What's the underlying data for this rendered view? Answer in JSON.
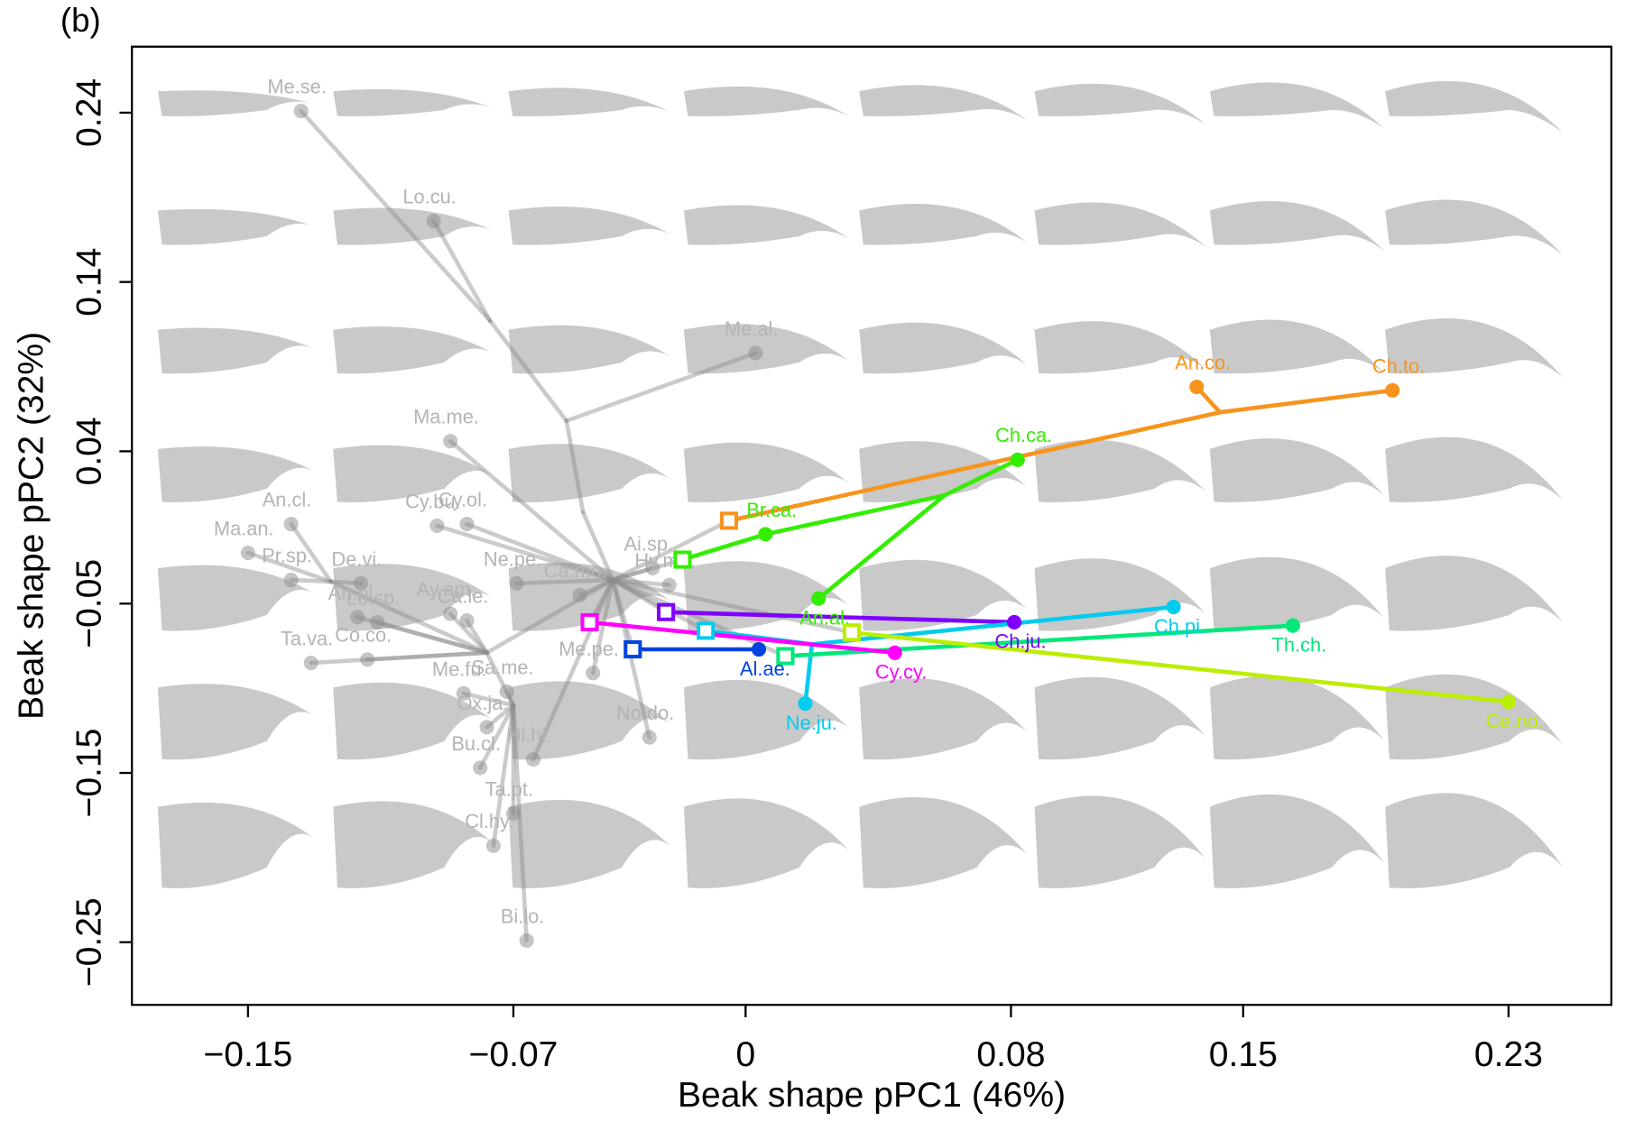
{
  "chart_data": {
    "type": "phylomorphospace",
    "title": "(b)",
    "x_label": "Beak shape pPC1 (46%)",
    "y_label": "Beak shape pPC2 (32%)",
    "xlim": [
      -0.185,
      0.261
    ],
    "ylim": [
      -0.287,
      0.279
    ],
    "xticks": [
      {
        "value": -0.15,
        "label": "−0.15"
      },
      {
        "value": -0.07,
        "label": "−0.07"
      },
      {
        "value": 0,
        "label": "0"
      },
      {
        "value": 0.08,
        "label": "0.08"
      },
      {
        "value": 0.15,
        "label": "0.15"
      },
      {
        "value": 0.23,
        "label": "0.23"
      }
    ],
    "yticks": [
      {
        "value": 0.24,
        "label": "0.24"
      },
      {
        "value": 0.14,
        "label": "0.14"
      },
      {
        "value": 0.04,
        "label": "0.04"
      },
      {
        "value": -0.05,
        "label": "−0.05"
      },
      {
        "value": -0.15,
        "label": "−0.15"
      },
      {
        "value": -0.25,
        "label": "−0.25"
      }
    ],
    "groups": [
      {
        "color": "#8c8c8c",
        "branches": [
          {
            "x": [
              -0.134,
              -0.077
            ],
            "y": [
              0.241,
              0.117
            ]
          },
          {
            "x": [
              -0.094,
              -0.077
            ],
            "y": [
              0.176,
              0.117
            ]
          },
          {
            "x": [
              -0.077,
              -0.054
            ],
            "y": [
              0.117,
              0.058
            ]
          },
          {
            "x": [
              0.003,
              -0.054
            ],
            "y": [
              0.098,
              0.058
            ]
          },
          {
            "x": [
              -0.054,
              -0.049
            ],
            "y": [
              0.058,
              0.004
            ]
          },
          {
            "x": [
              -0.049,
              -0.04
            ],
            "y": [
              0.004,
              -0.036
            ]
          },
          {
            "x": [
              -0.089,
              -0.04
            ],
            "y": [
              0.046,
              -0.036
            ]
          },
          {
            "x": [
              -0.04,
              -0.078
            ],
            "y": [
              -0.036,
              -0.079
            ]
          },
          {
            "x": [
              -0.15,
              -0.125
            ],
            "y": [
              -0.02,
              -0.037
            ]
          },
          {
            "x": [
              -0.137,
              -0.125
            ],
            "y": [
              -0.036,
              -0.037
            ]
          },
          {
            "x": [
              -0.137,
              -0.125
            ],
            "y": [
              -0.003,
              -0.037
            ]
          },
          {
            "x": [
              -0.116,
              -0.125
            ],
            "y": [
              -0.038,
              -0.037
            ]
          },
          {
            "x": [
              -0.125,
              -0.078
            ],
            "y": [
              -0.037,
              -0.079
            ]
          },
          {
            "x": [
              -0.117,
              -0.078
            ],
            "y": [
              -0.058,
              -0.079
            ]
          },
          {
            "x": [
              -0.089,
              -0.078
            ],
            "y": [
              -0.056,
              -0.079
            ]
          },
          {
            "x": [
              -0.084,
              -0.078
            ],
            "y": [
              -0.06,
              -0.079
            ]
          },
          {
            "x": [
              -0.111,
              -0.078
            ],
            "y": [
              -0.061,
              -0.079
            ]
          },
          {
            "x": [
              -0.093,
              -0.04
            ],
            "y": [
              -0.004,
              -0.036
            ]
          },
          {
            "x": [
              -0.084,
              -0.04
            ],
            "y": [
              -0.003,
              -0.036
            ]
          },
          {
            "x": [
              -0.069,
              -0.04
            ],
            "y": [
              -0.038,
              -0.036
            ]
          },
          {
            "x": [
              -0.05,
              -0.04
            ],
            "y": [
              -0.045,
              -0.036
            ]
          },
          {
            "x": [
              -0.028,
              -0.04
            ],
            "y": [
              -0.029,
              -0.036
            ]
          },
          {
            "x": [
              -0.023,
              -0.04
            ],
            "y": [
              -0.039,
              -0.036
            ]
          },
          {
            "x": [
              -0.131,
              -0.078
            ],
            "y": [
              -0.085,
              -0.079
            ]
          },
          {
            "x": [
              -0.114,
              -0.078
            ],
            "y": [
              -0.083,
              -0.079
            ]
          },
          {
            "x": [
              -0.078,
              -0.07
            ],
            "y": [
              -0.079,
              -0.11
            ]
          },
          {
            "x": [
              -0.085,
              -0.07
            ],
            "y": [
              -0.103,
              -0.11
            ]
          },
          {
            "x": [
              -0.072,
              -0.07
            ],
            "y": [
              -0.102,
              -0.11
            ]
          },
          {
            "x": [
              -0.046,
              -0.04
            ],
            "y": [
              -0.091,
              -0.036
            ]
          },
          {
            "x": [
              -0.078,
              -0.07
            ],
            "y": [
              -0.123,
              -0.11
            ]
          },
          {
            "x": [
              -0.029,
              -0.04
            ],
            "y": [
              -0.129,
              -0.036
            ]
          },
          {
            "x": [
              -0.08,
              -0.07
            ],
            "y": [
              -0.147,
              -0.11
            ]
          },
          {
            "x": [
              -0.064,
              -0.04
            ],
            "y": [
              -0.142,
              -0.036
            ]
          },
          {
            "x": [
              -0.07,
              -0.07
            ],
            "y": [
              -0.174,
              -0.11
            ]
          },
          {
            "x": [
              -0.076,
              -0.07
            ],
            "y": [
              -0.193,
              -0.11
            ]
          },
          {
            "x": [
              -0.066,
              -0.07
            ],
            "y": [
              -0.249,
              -0.11
            ]
          },
          {
            "x": [
              -0.04,
              -0.005
            ],
            "y": [
              -0.036,
              -0.001
            ]
          },
          {
            "x": [
              -0.04,
              -0.019
            ],
            "y": [
              -0.036,
              -0.024
            ]
          },
          {
            "x": [
              -0.04,
              -0.024
            ],
            "y": [
              -0.036,
              -0.055
            ]
          },
          {
            "x": [
              -0.04,
              -0.012
            ],
            "y": [
              -0.036,
              -0.066
            ]
          },
          {
            "x": [
              -0.04,
              0.012
            ],
            "y": [
              -0.036,
              -0.081
            ]
          },
          {
            "x": [
              -0.04,
              0.032
            ],
            "y": [
              -0.036,
              -0.067
            ]
          },
          {
            "x": [
              -0.04,
              -0.047
            ],
            "y": [
              -0.036,
              -0.061
            ]
          },
          {
            "x": [
              -0.04,
              -0.034
            ],
            "y": [
              -0.036,
              -0.077
            ]
          }
        ],
        "tips": {
          "labels": [
            "Me.se.",
            "Lo.cu.",
            "Me.al.",
            "Ma.me.",
            "An.cl.",
            "Ma.an.",
            "Cy.bu.",
            "Cy.ol.",
            "Pr.sp.",
            "De.vi.",
            "An.pl.",
            "Ay.am.",
            "Lo.sp.",
            "Ca.le.",
            "Ne.pe.",
            "Ca.mo.",
            "Ai.sp.",
            "Hy.ma.",
            "Ta.va.",
            "Co.co.",
            "Me.fu.",
            "Sa.me.",
            "Me.pe.",
            "Ox.ja.",
            "No.do.",
            "Bu.cl.",
            "Hi.hi.",
            "Ta.pt.",
            "Cl.hy.",
            "Bi.lo."
          ],
          "x": [
            -0.134,
            -0.094,
            0.003,
            -0.089,
            -0.137,
            -0.15,
            -0.093,
            -0.084,
            -0.137,
            -0.116,
            -0.117,
            -0.089,
            -0.111,
            -0.084,
            -0.069,
            -0.05,
            -0.028,
            -0.023,
            -0.131,
            -0.114,
            -0.085,
            -0.072,
            -0.046,
            -0.078,
            -0.029,
            -0.08,
            -0.064,
            -0.07,
            -0.076,
            -0.066
          ],
          "y": [
            0.241,
            0.176,
            0.098,
            0.046,
            -0.003,
            -0.02,
            -0.004,
            -0.003,
            -0.036,
            -0.038,
            -0.058,
            -0.056,
            -0.061,
            -0.06,
            -0.038,
            -0.045,
            -0.029,
            -0.039,
            -0.085,
            -0.083,
            -0.103,
            -0.102,
            -0.091,
            -0.123,
            -0.129,
            -0.147,
            -0.142,
            -0.174,
            -0.193,
            -0.249
          ]
        }
      },
      {
        "color": "#f7941d",
        "branches": [
          {
            "x": [
              -0.005,
              0.143
            ],
            "y": [
              -0.001,
              0.063
            ]
          },
          {
            "x": [
              0.143,
              0.195
            ],
            "y": [
              0.063,
              0.076
            ]
          },
          {
            "x": [
              0.143,
              0.136
            ],
            "y": [
              0.063,
              0.078
            ]
          }
        ],
        "ancestor": {
          "x": -0.005,
          "y": -0.001
        },
        "tips": {
          "labels": [
            "An.co.",
            "Ch.to."
          ],
          "x": [
            0.136,
            0.195
          ],
          "y": [
            0.078,
            0.076
          ]
        }
      },
      {
        "color": "#33ee00",
        "branches": [
          {
            "x": [
              -0.019,
              0.006
            ],
            "y": [
              -0.024,
              -0.009
            ]
          },
          {
            "x": [
              0.006,
              0.06
            ],
            "y": [
              -0.009,
              0.014
            ]
          },
          {
            "x": [
              0.06,
              0.082
            ],
            "y": [
              0.014,
              0.035
            ]
          },
          {
            "x": [
              0.06,
              0.022
            ],
            "y": [
              0.014,
              -0.047
            ]
          }
        ],
        "ancestor": {
          "x": -0.019,
          "y": -0.024
        },
        "tips": {
          "labels": [
            "Ch.ca.",
            "Br.ca.",
            "An.al."
          ],
          "x": [
            0.082,
            0.006,
            0.022
          ],
          "y": [
            0.035,
            -0.009,
            -0.047
          ]
        }
      },
      {
        "color": "#7f00ff",
        "branches": [
          {
            "x": [
              -0.024,
              0.081
            ],
            "y": [
              -0.055,
              -0.061
            ]
          }
        ],
        "ancestor": {
          "x": -0.024,
          "y": -0.055
        },
        "tips": {
          "labels": [
            "Ch.ju."
          ],
          "x": [
            0.081
          ],
          "y": [
            -0.061
          ]
        }
      },
      {
        "color": "#00ccee",
        "branches": [
          {
            "x": [
              -0.012,
              0.02
            ],
            "y": [
              -0.066,
              -0.074
            ]
          },
          {
            "x": [
              0.02,
              0.129
            ],
            "y": [
              -0.074,
              -0.052
            ]
          },
          {
            "x": [
              0.02,
              0.018
            ],
            "y": [
              -0.074,
              -0.109
            ]
          }
        ],
        "ancestor": {
          "x": -0.012,
          "y": -0.066
        },
        "tips": {
          "labels": [
            "Ch.pi.",
            "Ne.ju."
          ],
          "x": [
            0.129,
            0.018
          ],
          "y": [
            -0.052,
            -0.109
          ]
        }
      },
      {
        "color": "#00e87a",
        "branches": [
          {
            "x": [
              0.012,
              0.165
            ],
            "y": [
              -0.081,
              -0.063
            ]
          }
        ],
        "ancestor": {
          "x": 0.012,
          "y": -0.081
        },
        "tips": {
          "labels": [
            "Th.ch."
          ],
          "x": [
            0.165
          ],
          "y": [
            -0.063
          ]
        }
      },
      {
        "color": "#bbee00",
        "branches": [
          {
            "x": [
              0.032,
              0.23
            ],
            "y": [
              -0.067,
              -0.108
            ]
          }
        ],
        "ancestor": {
          "x": 0.032,
          "y": -0.067
        },
        "tips": {
          "labels": [
            "Ce.no."
          ],
          "x": [
            0.23
          ],
          "y": [
            -0.108
          ]
        }
      },
      {
        "color": "#ff00ff",
        "branches": [
          {
            "x": [
              -0.047,
              0.045
            ],
            "y": [
              -0.061,
              -0.079
            ]
          }
        ],
        "ancestor": {
          "x": -0.047,
          "y": -0.061
        },
        "tips": {
          "labels": [
            "Cy.cy."
          ],
          "x": [
            0.045
          ],
          "y": [
            -0.079
          ]
        }
      },
      {
        "color": "#0044dd",
        "branches": [
          {
            "x": [
              -0.034,
              0.004
            ],
            "y": [
              -0.077,
              -0.077
            ]
          }
        ],
        "ancestor": {
          "x": -0.034,
          "y": -0.077
        },
        "tips": {
          "labels": [
            "Al.ae."
          ],
          "x": [
            0.004
          ],
          "y": [
            -0.077
          ]
        }
      }
    ]
  }
}
